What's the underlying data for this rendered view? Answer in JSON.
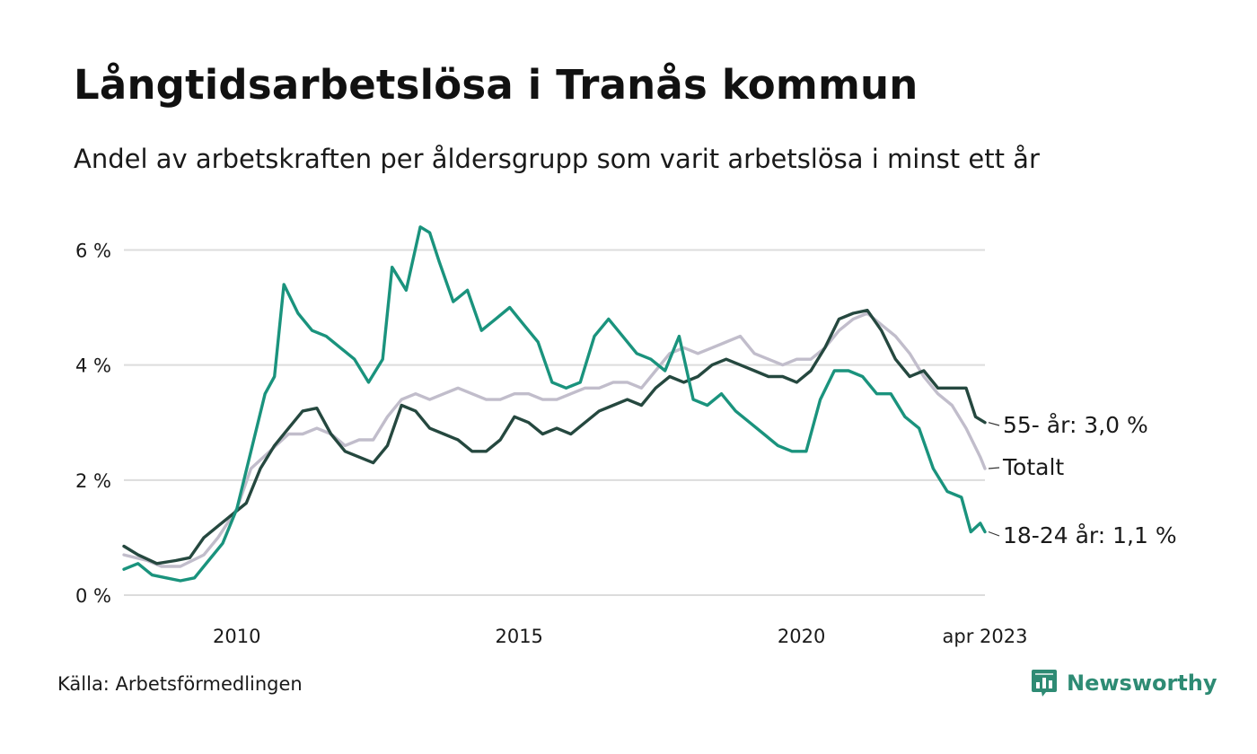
{
  "title": "Långtidsarbetslösa i Tranås kommun",
  "subtitle": "Andel av arbetskraften per åldersgrupp som varit arbetslösa i minst ett år",
  "source": "Källa: Arbetsförmedlingen",
  "brand": "Newsworthy",
  "colors": {
    "brand": "#2e8b74",
    "grid": "#dcdcdc"
  },
  "chart_data": {
    "type": "line",
    "x_start": "2008-01",
    "x_end": "2023-04",
    "x_ticks": [
      {
        "label": "2010",
        "date": "2010-01"
      },
      {
        "label": "2015",
        "date": "2015-01"
      },
      {
        "label": "2020",
        "date": "2020-01"
      },
      {
        "label": "apr 2023",
        "date": "2023-04"
      }
    ],
    "y_ticks": [
      {
        "label": "0 %",
        "value": 0
      },
      {
        "label": "2 %",
        "value": 2
      },
      {
        "label": "4 %",
        "value": 4
      },
      {
        "label": "6 %",
        "value": 6
      }
    ],
    "ylim": [
      0,
      6.6
    ],
    "grid": true,
    "series": [
      {
        "name": "Totalt",
        "end_label": "Totalt",
        "color": "#c1bdcb",
        "points": [
          [
            "2008-01",
            0.7
          ],
          [
            "2008-06",
            0.6
          ],
          [
            "2008-09",
            0.5
          ],
          [
            "2009-01",
            0.5
          ],
          [
            "2009-06",
            0.7
          ],
          [
            "2009-09",
            1.0
          ],
          [
            "2010-01",
            1.5
          ],
          [
            "2010-04",
            2.2
          ],
          [
            "2010-08",
            2.5
          ],
          [
            "2010-12",
            2.8
          ],
          [
            "2011-03",
            2.8
          ],
          [
            "2011-06",
            2.9
          ],
          [
            "2011-09",
            2.8
          ],
          [
            "2011-12",
            2.6
          ],
          [
            "2012-03",
            2.7
          ],
          [
            "2012-06",
            2.7
          ],
          [
            "2012-09",
            3.1
          ],
          [
            "2012-12",
            3.4
          ],
          [
            "2013-03",
            3.5
          ],
          [
            "2013-06",
            3.4
          ],
          [
            "2013-09",
            3.5
          ],
          [
            "2013-12",
            3.6
          ],
          [
            "2014-03",
            3.5
          ],
          [
            "2014-06",
            3.4
          ],
          [
            "2014-09",
            3.4
          ],
          [
            "2014-12",
            3.5
          ],
          [
            "2015-03",
            3.5
          ],
          [
            "2015-06",
            3.4
          ],
          [
            "2015-09",
            3.4
          ],
          [
            "2015-12",
            3.5
          ],
          [
            "2016-03",
            3.6
          ],
          [
            "2016-06",
            3.6
          ],
          [
            "2016-09",
            3.7
          ],
          [
            "2016-12",
            3.7
          ],
          [
            "2017-03",
            3.6
          ],
          [
            "2017-06",
            3.9
          ],
          [
            "2017-09",
            4.2
          ],
          [
            "2017-12",
            4.3
          ],
          [
            "2018-03",
            4.2
          ],
          [
            "2018-06",
            4.3
          ],
          [
            "2018-09",
            4.4
          ],
          [
            "2018-12",
            4.5
          ],
          [
            "2019-03",
            4.2
          ],
          [
            "2019-06",
            4.1
          ],
          [
            "2019-09",
            4.0
          ],
          [
            "2019-12",
            4.1
          ],
          [
            "2020-03",
            4.1
          ],
          [
            "2020-06",
            4.3
          ],
          [
            "2020-09",
            4.6
          ],
          [
            "2020-12",
            4.8
          ],
          [
            "2021-03",
            4.9
          ],
          [
            "2021-06",
            4.7
          ],
          [
            "2021-09",
            4.5
          ],
          [
            "2021-12",
            4.2
          ],
          [
            "2022-03",
            3.8
          ],
          [
            "2022-06",
            3.5
          ],
          [
            "2022-09",
            3.3
          ],
          [
            "2022-12",
            2.9
          ],
          [
            "2023-03",
            2.4
          ],
          [
            "2023-04",
            2.2
          ]
        ]
      },
      {
        "name": "55- år",
        "end_label": "55- år: 3,0 %",
        "color": "#25483f",
        "points": [
          [
            "2008-01",
            0.85
          ],
          [
            "2008-04",
            0.7
          ],
          [
            "2008-08",
            0.55
          ],
          [
            "2008-12",
            0.6
          ],
          [
            "2009-03",
            0.65
          ],
          [
            "2009-06",
            1.0
          ],
          [
            "2009-09",
            1.2
          ],
          [
            "2009-12",
            1.4
          ],
          [
            "2010-03",
            1.6
          ],
          [
            "2010-06",
            2.2
          ],
          [
            "2010-09",
            2.6
          ],
          [
            "2010-12",
            2.9
          ],
          [
            "2011-03",
            3.2
          ],
          [
            "2011-06",
            3.25
          ],
          [
            "2011-09",
            2.8
          ],
          [
            "2011-12",
            2.5
          ],
          [
            "2012-03",
            2.4
          ],
          [
            "2012-06",
            2.3
          ],
          [
            "2012-09",
            2.6
          ],
          [
            "2012-12",
            3.3
          ],
          [
            "2013-03",
            3.2
          ],
          [
            "2013-06",
            2.9
          ],
          [
            "2013-09",
            2.8
          ],
          [
            "2013-12",
            2.7
          ],
          [
            "2014-03",
            2.5
          ],
          [
            "2014-06",
            2.5
          ],
          [
            "2014-09",
            2.7
          ],
          [
            "2014-12",
            3.1
          ],
          [
            "2015-03",
            3.0
          ],
          [
            "2015-06",
            2.8
          ],
          [
            "2015-09",
            2.9
          ],
          [
            "2015-12",
            2.8
          ],
          [
            "2016-03",
            3.0
          ],
          [
            "2016-06",
            3.2
          ],
          [
            "2016-09",
            3.3
          ],
          [
            "2016-12",
            3.4
          ],
          [
            "2017-03",
            3.3
          ],
          [
            "2017-06",
            3.6
          ],
          [
            "2017-09",
            3.8
          ],
          [
            "2017-12",
            3.7
          ],
          [
            "2018-03",
            3.8
          ],
          [
            "2018-06",
            4.0
          ],
          [
            "2018-09",
            4.1
          ],
          [
            "2018-12",
            4.0
          ],
          [
            "2019-03",
            3.9
          ],
          [
            "2019-06",
            3.8
          ],
          [
            "2019-09",
            3.8
          ],
          [
            "2019-12",
            3.7
          ],
          [
            "2020-03",
            3.9
          ],
          [
            "2020-06",
            4.3
          ],
          [
            "2020-09",
            4.8
          ],
          [
            "2020-12",
            4.9
          ],
          [
            "2021-03",
            4.95
          ],
          [
            "2021-06",
            4.6
          ],
          [
            "2021-09",
            4.1
          ],
          [
            "2021-12",
            3.8
          ],
          [
            "2022-03",
            3.9
          ],
          [
            "2022-06",
            3.6
          ],
          [
            "2022-09",
            3.6
          ],
          [
            "2022-12",
            3.6
          ],
          [
            "2023-02",
            3.1
          ],
          [
            "2023-04",
            3.0
          ]
        ]
      },
      {
        "name": "18-24 år",
        "end_label": "18-24 år: 1,1 %",
        "color": "#1a937d",
        "points": [
          [
            "2008-01",
            0.45
          ],
          [
            "2008-04",
            0.55
          ],
          [
            "2008-07",
            0.35
          ],
          [
            "2008-10",
            0.3
          ],
          [
            "2009-01",
            0.25
          ],
          [
            "2009-04",
            0.3
          ],
          [
            "2009-07",
            0.6
          ],
          [
            "2009-10",
            0.9
          ],
          [
            "2010-01",
            1.5
          ],
          [
            "2010-04",
            2.5
          ],
          [
            "2010-07",
            3.5
          ],
          [
            "2010-09",
            3.8
          ],
          [
            "2010-11",
            5.4
          ],
          [
            "2011-02",
            4.9
          ],
          [
            "2011-05",
            4.6
          ],
          [
            "2011-08",
            4.5
          ],
          [
            "2011-11",
            4.3
          ],
          [
            "2012-02",
            4.1
          ],
          [
            "2012-05",
            3.7
          ],
          [
            "2012-08",
            4.1
          ],
          [
            "2012-10",
            5.7
          ],
          [
            "2013-01",
            5.3
          ],
          [
            "2013-04",
            6.4
          ],
          [
            "2013-06",
            6.3
          ],
          [
            "2013-08",
            5.8
          ],
          [
            "2013-11",
            5.1
          ],
          [
            "2014-02",
            5.3
          ],
          [
            "2014-05",
            4.6
          ],
          [
            "2014-08",
            4.8
          ],
          [
            "2014-11",
            5.0
          ],
          [
            "2015-02",
            4.7
          ],
          [
            "2015-05",
            4.4
          ],
          [
            "2015-08",
            3.7
          ],
          [
            "2015-11",
            3.6
          ],
          [
            "2016-02",
            3.7
          ],
          [
            "2016-05",
            4.5
          ],
          [
            "2016-08",
            4.8
          ],
          [
            "2016-11",
            4.5
          ],
          [
            "2017-02",
            4.2
          ],
          [
            "2017-05",
            4.1
          ],
          [
            "2017-08",
            3.9
          ],
          [
            "2017-11",
            4.5
          ],
          [
            "2018-02",
            3.4
          ],
          [
            "2018-05",
            3.3
          ],
          [
            "2018-08",
            3.5
          ],
          [
            "2018-11",
            3.2
          ],
          [
            "2019-02",
            3.0
          ],
          [
            "2019-05",
            2.8
          ],
          [
            "2019-08",
            2.6
          ],
          [
            "2019-11",
            2.5
          ],
          [
            "2020-02",
            2.5
          ],
          [
            "2020-05",
            3.4
          ],
          [
            "2020-08",
            3.9
          ],
          [
            "2020-11",
            3.9
          ],
          [
            "2021-02",
            3.8
          ],
          [
            "2021-05",
            3.5
          ],
          [
            "2021-08",
            3.5
          ],
          [
            "2021-11",
            3.1
          ],
          [
            "2022-02",
            2.9
          ],
          [
            "2022-05",
            2.2
          ],
          [
            "2022-08",
            1.8
          ],
          [
            "2022-11",
            1.7
          ],
          [
            "2023-01",
            1.1
          ],
          [
            "2023-03",
            1.25
          ],
          [
            "2023-04",
            1.1
          ]
        ]
      }
    ]
  }
}
